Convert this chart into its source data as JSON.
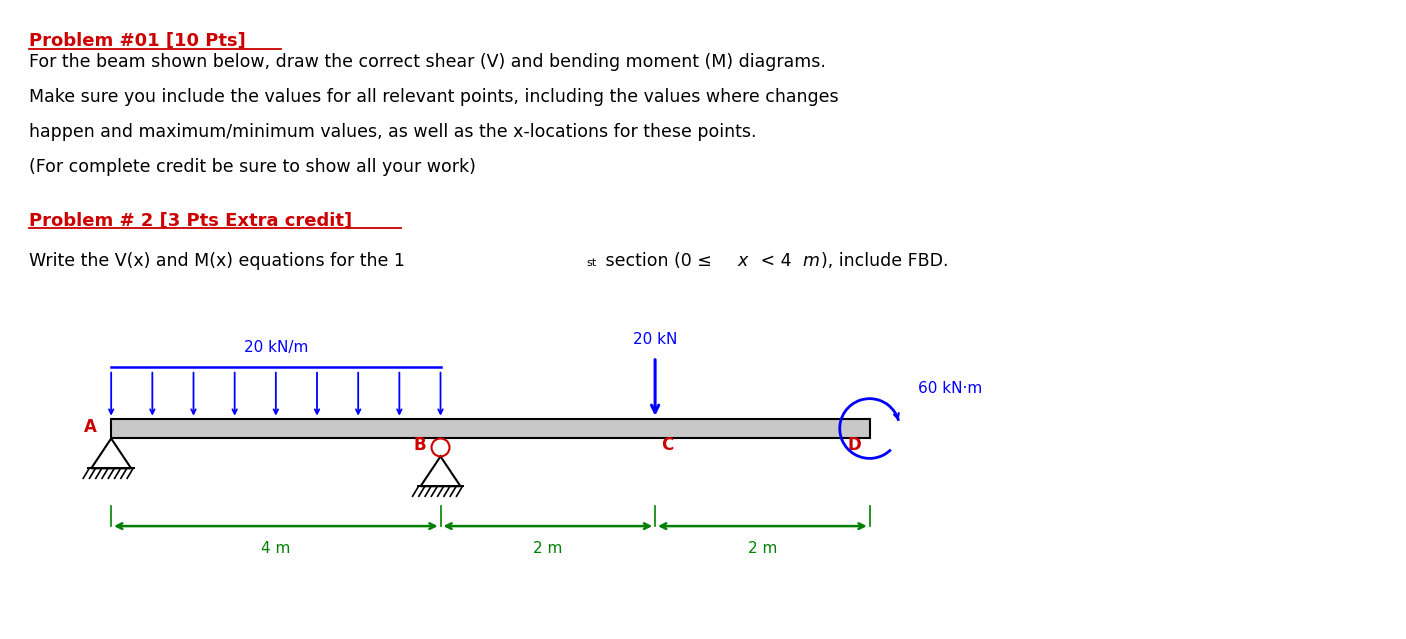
{
  "bg_color": "#ffffff",
  "title_color": "#cc0000",
  "text_color": "#000000",
  "blue_color": "#0000ff",
  "red_color": "#cc0000",
  "green_color": "#008000",
  "black_color": "#000000",
  "problem1_title": "Problem #01 [10 Pts]",
  "problem1_line1": "For the beam shown below, draw the correct shear (V) and bending moment (M) diagrams.",
  "problem1_line2": "Make sure you include the values for all relevant points, including the values where changes",
  "problem1_line3": "happen and maximum/minimum values, as well as the x-locations for these points.",
  "problem1_line4": "(For complete credit be sure to show all your work)",
  "problem2_title": "Problem # 2 [3 Pts Extra credit]",
  "problem2_line_pre": "Write the V(x) and M(x) equations for the 1",
  "problem2_line_sup": "st",
  "problem2_line_mid": " section (0 ≤ ",
  "problem2_line_x": "x",
  "problem2_line_lt": " < 4 ",
  "problem2_line_m": "m",
  "problem2_line_end": "), include FBD.",
  "dist_load_label": "20 kN/m",
  "point_load_label": "20 kN",
  "moment_label": "60 kN·m",
  "dim_4m": "4 m",
  "dim_2m_1": "2 m",
  "dim_2m_2": "2 m",
  "label_A": "A",
  "label_B": "B",
  "label_C": "C",
  "label_D": "D",
  "figsize": [
    14.06,
    6.39
  ],
  "dpi": 100
}
